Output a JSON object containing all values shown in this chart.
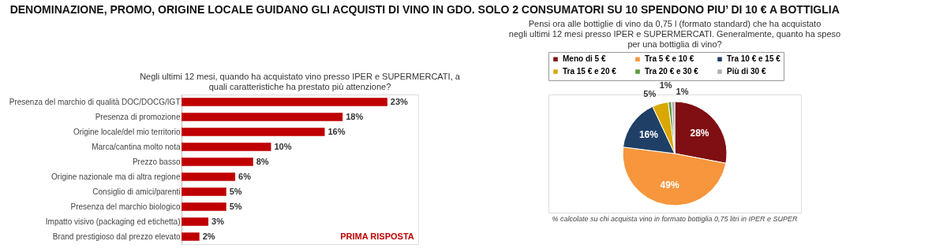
{
  "chart_data": [
    {
      "type": "bar",
      "orientation": "horizontal",
      "title": "DENOMINAZIONE, PROMO, ORIGINE LOCALE GUIDANO GLI ACQUISTI DI VINO IN GDO. SOLO 2 CONSUMATORI SU 10 SPENDONO PIU’ DI 10 € A BOTTIGLIA",
      "subtitle": "Negli ultimi 12 mesi, quando ha acquistato vino presso IPER e SUPERMERCATI, a quali caratteristiche ha prestato più attenzione?",
      "categories": [
        "Presenza del marchio di qualità DOC/DOCG/IGT",
        "Presenza di promozione",
        "Origine locale/del mio territorio",
        "Marca/cantina molto nota",
        "Prezzo basso",
        "Origine nazionale ma di altra regione",
        "Consiglio di amici/parenti",
        "Presenza del marchio biologico",
        "Impatto visivo (packaging ed etichetta)",
        "Brand prestigioso dal prezzo elevato"
      ],
      "values": [
        23,
        18,
        16,
        10,
        8,
        6,
        5,
        5,
        3,
        2
      ],
      "value_labels": [
        "23%",
        "18%",
        "16%",
        "10%",
        "8%",
        "6%",
        "5%",
        "5%",
        "3%",
        "2%"
      ],
      "color": "#c00000",
      "annotations": [
        "PRIMA RISPOSTA"
      ]
    },
    {
      "type": "pie",
      "subtitle": "Pensi ora alle bottiglie di vino da 0,75 l (formato standard) che ha acquistato negli ultimi 12 mesi presso IPER e SUPERMERCATI. Generalmente, quanto ha speso per una bottiglia di vino?",
      "categories": [
        "Meno di 5 €",
        "Tra 5 € e 10 €",
        "Tra 10 € e 15 €",
        "Tra 15 € e 20 €",
        "Tra 20 € e 30 €",
        "Più di 30 €"
      ],
      "values": [
        28,
        49,
        16,
        5,
        1,
        1
      ],
      "value_labels": [
        "28%",
        "49%",
        "16%",
        "5%",
        "1%",
        "1%"
      ],
      "colors": [
        "#7f0f13",
        "#f7963c",
        "#1f3f66",
        "#d9a800",
        "#5a9a3c",
        "#b0b0b0"
      ],
      "legend": "top",
      "annotations": [
        "% calcolate su chi acquista vino in formato bottiglia 0,75 litri in IPER e SUPER"
      ]
    }
  ]
}
